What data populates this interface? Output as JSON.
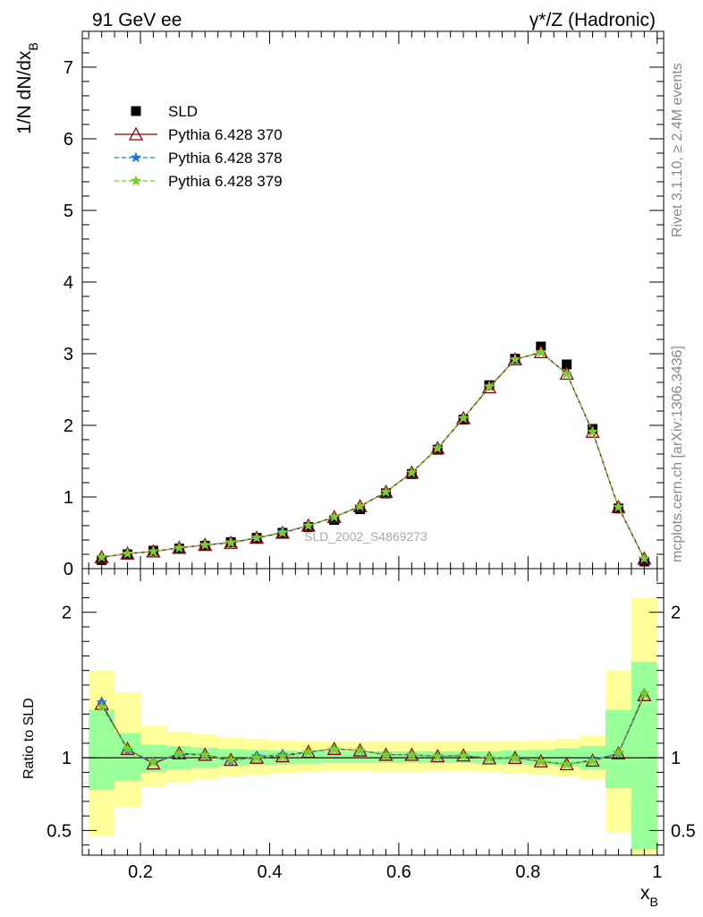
{
  "header": {
    "left_title": "91 GeV ee",
    "right_title": "γ*/Z (Hadronic)"
  },
  "side_text": {
    "rivet": "Rivet 3.1.10, ≥ 2.4M events",
    "mcplots": "mcplots.cern.ch [arXiv:1306.3436]"
  },
  "watermark": "SLD_2002_S4869273",
  "chart_data": [
    {
      "type": "line",
      "panel": "main",
      "xlabel": "x_B",
      "ylabel": "1/N dN/dx_B",
      "xlim": [
        0.11,
        1.01
      ],
      "ylim": [
        0,
        7.5
      ],
      "yticks_major": [
        0,
        1,
        2,
        3,
        4,
        5,
        6,
        7
      ],
      "yticklabels": [
        "0",
        "1",
        "2",
        "3",
        "4",
        "5",
        "6",
        "7"
      ],
      "legend_position": "top-left",
      "x": [
        0.14,
        0.18,
        0.22,
        0.26,
        0.3,
        0.34,
        0.38,
        0.42,
        0.46,
        0.5,
        0.54,
        0.58,
        0.62,
        0.66,
        0.7,
        0.74,
        0.78,
        0.82,
        0.86,
        0.9,
        0.94,
        0.98
      ],
      "series": [
        {
          "name": "SLD",
          "marker": "square",
          "color": "#000000",
          "values": [
            0.12,
            0.2,
            0.25,
            0.28,
            0.32,
            0.37,
            0.43,
            0.5,
            0.58,
            0.68,
            0.83,
            1.05,
            1.32,
            1.66,
            2.08,
            2.56,
            2.93,
            3.1,
            2.85,
            1.95,
            0.84,
            0.1
          ]
        },
        {
          "name": "Pythia 6.428 370",
          "marker": "triangle-open",
          "color": "#8b0000",
          "values": [
            0.16,
            0.21,
            0.24,
            0.29,
            0.33,
            0.36,
            0.43,
            0.5,
            0.6,
            0.72,
            0.87,
            1.07,
            1.34,
            1.68,
            2.1,
            2.53,
            2.92,
            3.02,
            2.72,
            1.91,
            0.86,
            0.14
          ]
        },
        {
          "name": "Pythia 6.428 378",
          "marker": "star",
          "color": "#1f78d4",
          "dashed": true,
          "values": [
            0.16,
            0.21,
            0.24,
            0.29,
            0.33,
            0.37,
            0.43,
            0.51,
            0.6,
            0.72,
            0.87,
            1.07,
            1.34,
            1.68,
            2.1,
            2.54,
            2.92,
            3.02,
            2.72,
            1.91,
            0.86,
            0.14
          ]
        },
        {
          "name": "Pythia 6.428 379",
          "marker": "star",
          "color": "#7ccd2c",
          "dashed": true,
          "values": [
            0.16,
            0.21,
            0.24,
            0.29,
            0.33,
            0.36,
            0.43,
            0.5,
            0.6,
            0.72,
            0.87,
            1.07,
            1.34,
            1.68,
            2.1,
            2.54,
            2.92,
            3.02,
            2.72,
            1.91,
            0.86,
            0.14
          ]
        }
      ]
    },
    {
      "type": "line",
      "panel": "ratio",
      "xlabel": "x_B",
      "ylabel": "Ratio to SLD",
      "xlim": [
        0.11,
        1.01
      ],
      "ylim": [
        0.33,
        2.3
      ],
      "reference_line": 1,
      "yticks_major": [
        0.5,
        1,
        2
      ],
      "yticklabels": [
        "0.5",
        "1",
        "2"
      ],
      "xticks_major": [
        0.2,
        0.4,
        0.6,
        0.8,
        1
      ],
      "xticklabels": [
        "0.2",
        "0.4",
        "0.6",
        "0.8",
        "1"
      ],
      "x": [
        0.14,
        0.18,
        0.22,
        0.26,
        0.3,
        0.34,
        0.38,
        0.42,
        0.46,
        0.5,
        0.54,
        0.58,
        0.62,
        0.66,
        0.7,
        0.74,
        0.78,
        0.82,
        0.86,
        0.9,
        0.94,
        0.98
      ],
      "bin_edges": [
        0.12,
        0.16,
        0.2,
        0.24,
        0.28,
        0.32,
        0.36,
        0.4,
        0.44,
        0.48,
        0.52,
        0.56,
        0.6,
        0.64,
        0.68,
        0.72,
        0.76,
        0.8,
        0.84,
        0.88,
        0.92,
        0.96,
        1.0
      ],
      "band_inner_low": [
        0.78,
        0.84,
        0.9,
        0.92,
        0.93,
        0.94,
        0.95,
        0.955,
        0.96,
        0.965,
        0.965,
        0.965,
        0.965,
        0.965,
        0.965,
        0.96,
        0.955,
        0.95,
        0.94,
        0.92,
        0.79,
        0.37
      ],
      "band_inner_high": [
        1.33,
        1.17,
        1.09,
        1.08,
        1.07,
        1.06,
        1.055,
        1.05,
        1.045,
        1.045,
        1.045,
        1.045,
        1.045,
        1.045,
        1.045,
        1.045,
        1.05,
        1.055,
        1.065,
        1.08,
        1.33,
        1.66
      ],
      "band_outer_low": [
        0.46,
        0.66,
        0.8,
        0.83,
        0.85,
        0.87,
        0.88,
        0.89,
        0.9,
        0.905,
        0.905,
        0.9,
        0.9,
        0.905,
        0.905,
        0.9,
        0.895,
        0.885,
        0.87,
        0.85,
        0.49,
        0.33
      ],
      "band_outer_high": [
        1.6,
        1.45,
        1.22,
        1.18,
        1.16,
        1.14,
        1.13,
        1.12,
        1.115,
        1.11,
        1.11,
        1.11,
        1.11,
        1.11,
        1.11,
        1.11,
        1.115,
        1.12,
        1.13,
        1.15,
        1.6,
        2.1
      ],
      "series": [
        {
          "name": "Pythia 6.428 370",
          "marker": "triangle-open",
          "color": "#8b0000",
          "values": [
            1.37,
            1.06,
            0.96,
            1.03,
            1.02,
            0.985,
            1.0,
            1.01,
            1.04,
            1.06,
            1.05,
            1.02,
            1.02,
            1.01,
            1.015,
            0.995,
            0.998,
            0.975,
            0.955,
            0.98,
            1.03,
            1.43
          ]
        },
        {
          "name": "Pythia 6.428 378",
          "marker": "star",
          "color": "#1f78d4",
          "dashed": true,
          "values": [
            1.38,
            1.05,
            0.97,
            1.02,
            1.02,
            0.975,
            1.01,
            1.02,
            1.04,
            1.06,
            1.05,
            1.02,
            1.02,
            1.01,
            1.015,
            1.0,
            0.998,
            0.975,
            0.955,
            0.985,
            1.03,
            1.44
          ]
        },
        {
          "name": "Pythia 6.428 379",
          "marker": "star",
          "color": "#7ccd2c",
          "dashed": true,
          "values": [
            1.35,
            1.06,
            0.97,
            1.03,
            1.02,
            0.985,
            1.0,
            1.01,
            1.04,
            1.06,
            1.05,
            1.02,
            1.02,
            1.01,
            1.015,
            1.0,
            0.998,
            0.975,
            0.955,
            0.98,
            1.035,
            1.44
          ]
        }
      ]
    }
  ]
}
